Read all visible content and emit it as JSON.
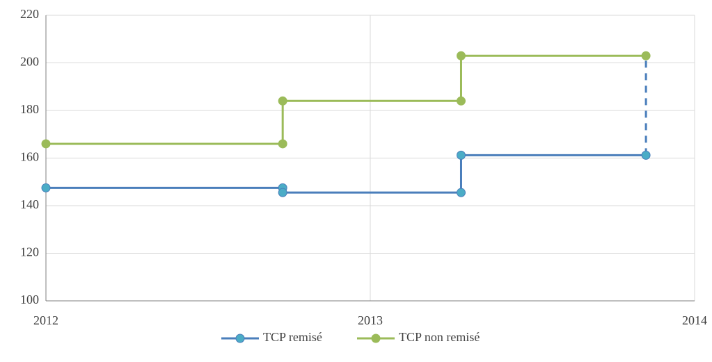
{
  "chart_data": {
    "type": "line",
    "step": true,
    "xlim": [
      2012,
      2014
    ],
    "xticks": [
      2012,
      2013,
      2014
    ],
    "ylim": [
      100,
      220
    ],
    "yticks": [
      100,
      120,
      140,
      160,
      180,
      200,
      220
    ],
    "grid": true,
    "legend": "bottom",
    "series": [
      {
        "name": "TCP remisé",
        "color": "#4a7ebb",
        "marker_color": "#4bacc6",
        "x": [
          2012,
          2012.73,
          2012.73,
          2013.28,
          2013.28,
          2013.85
        ],
        "values": [
          147.5,
          147.5,
          145.5,
          145.5,
          161.2,
          161.2
        ]
      },
      {
        "name": "TCP non remisé",
        "color": "#9bbb59",
        "marker_color": "#9bbb59",
        "x": [
          2012,
          2012.73,
          2012.73,
          2013.28,
          2013.28,
          2013.85
        ],
        "values": [
          166,
          166,
          184,
          184,
          203,
          203
        ]
      }
    ],
    "drop_lines": [
      {
        "x": 2013.85,
        "from": 161.2,
        "to": 203,
        "color": "#4a7ebb",
        "dashed": true
      }
    ]
  }
}
